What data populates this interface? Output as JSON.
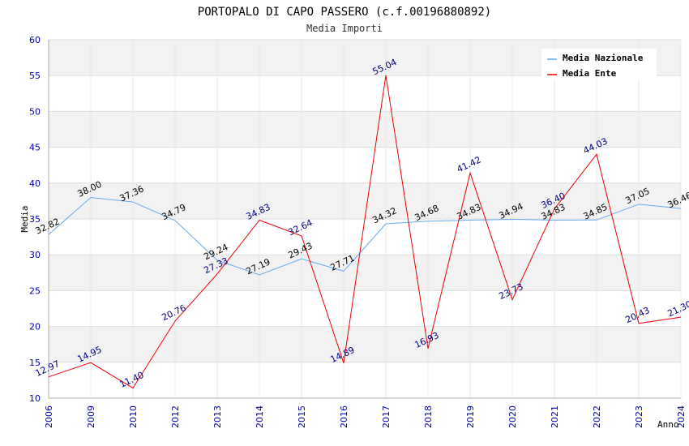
{
  "chart_data": {
    "type": "line",
    "title": "PORTOPALO DI CAPO PASSERO (c.f.00196880892)",
    "subtitle": "Media Importi",
    "xlabel": "Anno",
    "ylabel": "Media",
    "ylim": [
      10,
      60
    ],
    "yticks": [
      "10",
      "15",
      "20",
      "25",
      "30",
      "35",
      "40",
      "45",
      "50",
      "55",
      "60"
    ],
    "categories": [
      "2006",
      "2009",
      "2010",
      "2012",
      "2013",
      "2014",
      "2015",
      "2016",
      "2017",
      "2018",
      "2019",
      "2020",
      "2021",
      "2022",
      "2023",
      "2024"
    ],
    "series": [
      {
        "name": "Media Nazionale",
        "color": "#66aaee",
        "label_color": "#000000",
        "values": [
          32.82,
          38.0,
          37.36,
          34.79,
          29.24,
          27.19,
          29.43,
          27.71,
          34.32,
          34.68,
          34.83,
          34.94,
          34.83,
          34.85,
          37.05,
          36.46
        ],
        "labels": [
          "32.82",
          "38.00",
          "37.36",
          "34.79",
          "29.24",
          "27.19",
          "29.43",
          "27.71",
          "34.32",
          "34.68",
          "34.83",
          "34.94",
          "34.83",
          "34.85",
          "37.05",
          "36.46"
        ]
      },
      {
        "name": "Media Ente",
        "color": "#ee0000",
        "label_color": "#000080",
        "values": [
          12.97,
          14.95,
          11.4,
          20.76,
          27.33,
          34.83,
          32.64,
          14.89,
          55.04,
          16.93,
          41.42,
          23.73,
          36.4,
          44.03,
          20.43,
          21.3
        ],
        "labels": [
          "12.97",
          "14.95",
          "11.40",
          "20.76",
          "27.33",
          "34.83",
          "32.64",
          "14.89",
          "55.04",
          "16.93",
          "41.42",
          "23.73",
          "36.40",
          "44.03",
          "20.43",
          "21.30"
        ]
      }
    ],
    "legend_position": "top-right",
    "grid": true
  }
}
